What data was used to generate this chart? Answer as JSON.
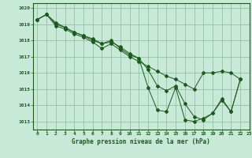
{
  "title": "Graphe pression niveau de la mer (hPa)",
  "bg_color": "#c8e8d8",
  "line_color": "#1a5c1a",
  "grid_color": "#88bb99",
  "xlim": [
    -0.5,
    23
  ],
  "ylim": [
    1012.5,
    1020.3
  ],
  "yticks": [
    1013,
    1014,
    1015,
    1016,
    1017,
    1018,
    1019,
    1020
  ],
  "xticks": [
    0,
    1,
    2,
    3,
    4,
    5,
    6,
    7,
    8,
    9,
    10,
    11,
    12,
    13,
    14,
    15,
    16,
    17,
    18,
    19,
    20,
    21,
    22,
    23
  ],
  "series1": {
    "x": [
      0,
      1,
      2,
      3,
      4,
      5,
      6,
      7,
      8,
      9,
      10,
      11,
      12,
      13,
      14,
      15,
      16,
      17,
      18,
      19,
      20,
      21,
      22
    ],
    "y": [
      1019.3,
      1019.6,
      1019.1,
      1018.8,
      1018.5,
      1018.3,
      1018.0,
      1017.8,
      1018.0,
      1017.5,
      1017.1,
      1016.9,
      1015.1,
      1013.7,
      1013.6,
      1015.1,
      1013.1,
      1013.0,
      1013.2,
      1013.5,
      1014.4,
      1013.6,
      1015.6
    ]
  },
  "series2": {
    "x": [
      0,
      1,
      2,
      3,
      4,
      5,
      6,
      7,
      8,
      9,
      10,
      11,
      12,
      13,
      14,
      15,
      16,
      17,
      18,
      19,
      20,
      21,
      22
    ],
    "y": [
      1019.3,
      1019.6,
      1018.9,
      1018.7,
      1018.4,
      1018.2,
      1017.9,
      1017.5,
      1017.8,
      1017.4,
      1017.0,
      1016.7,
      1016.4,
      1016.1,
      1015.8,
      1015.6,
      1015.3,
      1015.0,
      1016.0,
      1016.0,
      1016.1,
      1016.0,
      1015.6
    ]
  },
  "series3": {
    "x": [
      0,
      1,
      2,
      3,
      4,
      5,
      6,
      7,
      8,
      9,
      10,
      11,
      12,
      13,
      14,
      15,
      16,
      17,
      18,
      19,
      20,
      21,
      22
    ],
    "y": [
      1019.3,
      1019.6,
      1019.0,
      1018.8,
      1018.5,
      1018.3,
      1018.1,
      1017.8,
      1017.9,
      1017.6,
      1017.2,
      1016.9,
      1016.2,
      1015.2,
      1014.9,
      1015.2,
      1014.1,
      1013.3,
      1013.1,
      1013.5,
      1014.3,
      1013.6,
      1015.6
    ]
  }
}
